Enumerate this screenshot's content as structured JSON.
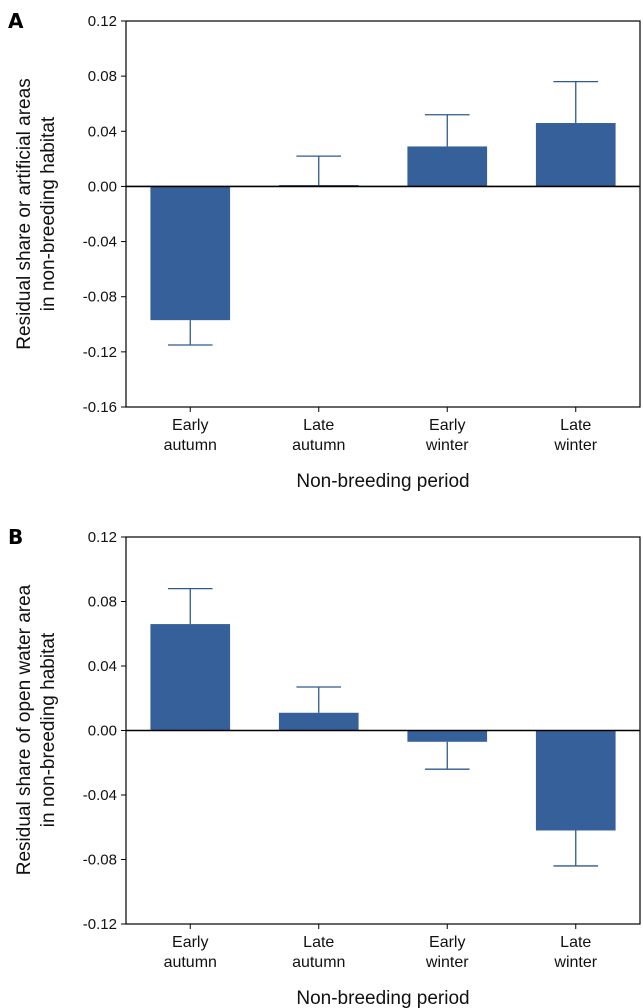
{
  "chart_data": [
    {
      "panel_label": "A",
      "type": "bar",
      "categories": [
        "Early\nautumn",
        "Late\nautumn",
        "Early\nwinter",
        "Late\nwinter"
      ],
      "values": [
        -0.097,
        0.001,
        0.029,
        0.046
      ],
      "error_upper": [
        -0.115,
        0.022,
        0.052,
        0.076
      ],
      "xlabel": "Non-breeding period",
      "ylabel": [
        "Residual share or artificial areas",
        "in non-breeding habitat"
      ],
      "ylim": [
        -0.16,
        0.12
      ],
      "yticks": [
        0.12,
        0.08,
        0.04,
        0.0,
        -0.04,
        -0.08,
        -0.12,
        -0.16
      ],
      "ytick_labels": [
        "0.12",
        "0.08",
        "0.04",
        "0.00",
        "-0.04",
        "-0.08",
        "-0.12",
        "-0.16"
      ],
      "bar_color": "#36609a",
      "grid": false
    },
    {
      "panel_label": "B",
      "type": "bar",
      "categories": [
        "Early\nautumn",
        "Late\nautumn",
        "Early\nwinter",
        "Late\nwinter"
      ],
      "values": [
        0.066,
        0.011,
        -0.007,
        -0.062
      ],
      "error_upper": [
        0.088,
        0.027,
        -0.024,
        -0.084
      ],
      "xlabel": "Non-breeding period",
      "ylabel": [
        "Residual share of open water area",
        "in non-breeding habitat"
      ],
      "ylim": [
        -0.12,
        0.12
      ],
      "yticks": [
        0.12,
        0.08,
        0.04,
        0.0,
        -0.04,
        -0.08,
        -0.12
      ],
      "ytick_labels": [
        "0.12",
        "0.08",
        "0.04",
        "0.00",
        "-0.04",
        "-0.08",
        "-0.12"
      ],
      "bar_color": "#36609a",
      "grid": false
    }
  ]
}
